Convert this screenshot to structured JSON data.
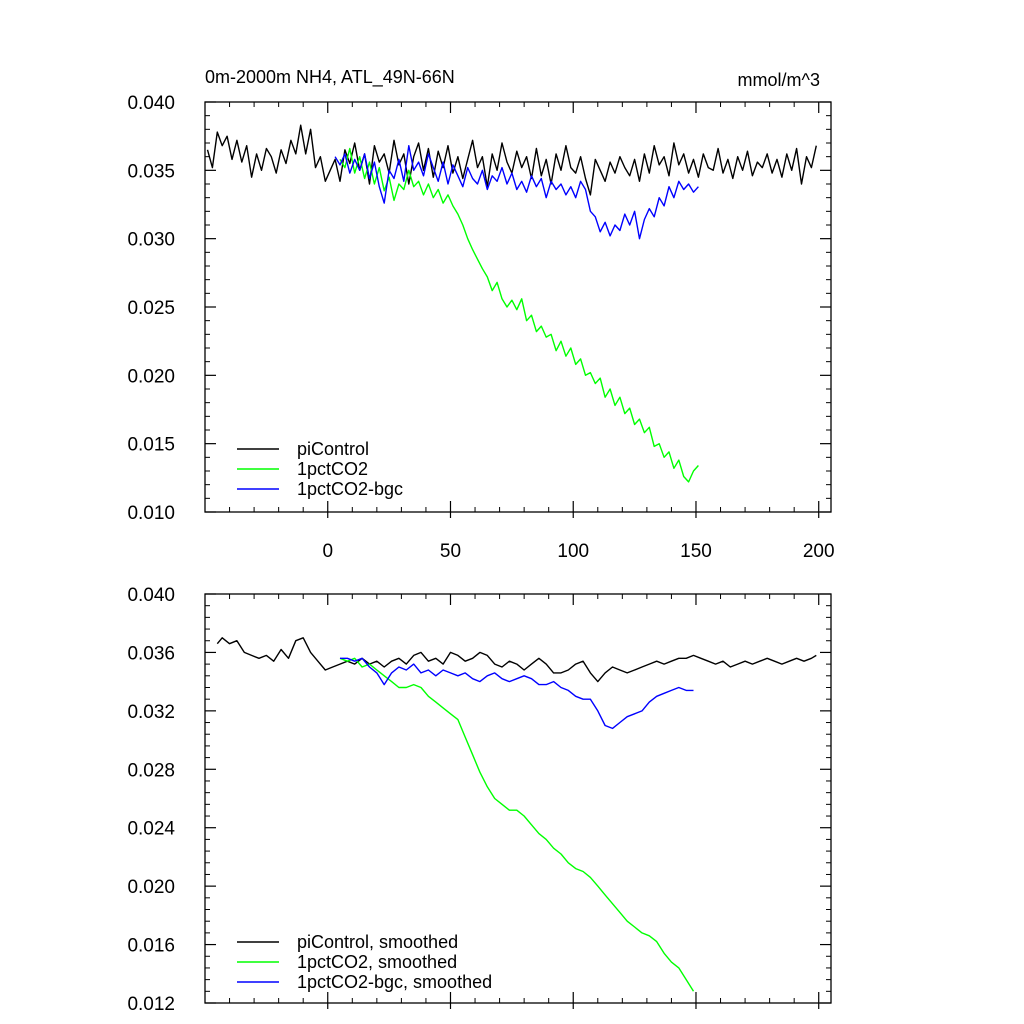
{
  "chart_data": [
    {
      "type": "line",
      "title": "0m-2000m NH4, ATL_49N-66N",
      "units": "mmol/m^3",
      "xlim": [
        -50,
        205
      ],
      "ylim": [
        0.01,
        0.04
      ],
      "y_ticks": [
        0.01,
        0.015,
        0.02,
        0.025,
        0.03,
        0.035,
        0.04
      ],
      "y_tick_labels": [
        "0.010",
        "0.015",
        "0.020",
        "0.025",
        "0.030",
        "0.035",
        "0.040"
      ],
      "x_ticks": [
        0,
        50,
        100,
        150,
        200
      ],
      "x_tick_labels": [
        "0",
        "50",
        "100",
        "150",
        "200"
      ],
      "legend_position": "bottom-left",
      "series": [
        {
          "name": "piControl",
          "color": "#000000",
          "x": [
            -49,
            -47,
            -45,
            -43,
            -41,
            -39,
            -37,
            -35,
            -33,
            -31,
            -29,
            -27,
            -25,
            -23,
            -21,
            -19,
            -17,
            -15,
            -13,
            -11,
            -9,
            -7,
            -5,
            -3,
            -1,
            1,
            3,
            5,
            7,
            9,
            11,
            13,
            15,
            17,
            19,
            21,
            23,
            25,
            27,
            29,
            31,
            33,
            35,
            37,
            39,
            41,
            43,
            45,
            47,
            49,
            51,
            53,
            55,
            57,
            59,
            61,
            63,
            65,
            67,
            69,
            71,
            73,
            75,
            77,
            79,
            81,
            83,
            85,
            87,
            89,
            91,
            93,
            95,
            97,
            99,
            101,
            103,
            105,
            107,
            109,
            111,
            113,
            115,
            117,
            119,
            121,
            123,
            125,
            127,
            129,
            131,
            133,
            135,
            137,
            139,
            141,
            143,
            145,
            147,
            149,
            151,
            153,
            155,
            157,
            159,
            161,
            163,
            165,
            167,
            169,
            171,
            173,
            175,
            177,
            179,
            181,
            183,
            185,
            187,
            189,
            191,
            193,
            195,
            197,
            199
          ],
          "values": [
            0.0365,
            0.0352,
            0.0378,
            0.0368,
            0.0375,
            0.0358,
            0.0372,
            0.0356,
            0.0368,
            0.0345,
            0.0362,
            0.035,
            0.0366,
            0.036,
            0.0348,
            0.0365,
            0.0355,
            0.0372,
            0.0362,
            0.0383,
            0.0362,
            0.038,
            0.0352,
            0.036,
            0.0342,
            0.035,
            0.0358,
            0.0342,
            0.0365,
            0.0355,
            0.037,
            0.035,
            0.0362,
            0.034,
            0.0368,
            0.0356,
            0.0362,
            0.0348,
            0.0372,
            0.0354,
            0.0362,
            0.034,
            0.036,
            0.037,
            0.035,
            0.0366,
            0.0345,
            0.0364,
            0.0352,
            0.0368,
            0.0348,
            0.036,
            0.0344,
            0.0358,
            0.0372,
            0.0352,
            0.036,
            0.0338,
            0.0362,
            0.035,
            0.037,
            0.0356,
            0.0348,
            0.0364,
            0.0352,
            0.036,
            0.0344,
            0.0366,
            0.0346,
            0.0358,
            0.034,
            0.0362,
            0.035,
            0.0368,
            0.0352,
            0.0348,
            0.036,
            0.0344,
            0.0332,
            0.0358,
            0.035,
            0.0342,
            0.0356,
            0.0348,
            0.036,
            0.0352,
            0.0346,
            0.0358,
            0.0342,
            0.0362,
            0.0348,
            0.0368,
            0.0354,
            0.036,
            0.0346,
            0.037,
            0.0354,
            0.0362,
            0.0348,
            0.0358,
            0.0345,
            0.0362,
            0.0352,
            0.035,
            0.0366,
            0.0348,
            0.0358,
            0.0344,
            0.036,
            0.035,
            0.0364,
            0.0346,
            0.0356,
            0.0352,
            0.0362,
            0.0348,
            0.0358,
            0.0345,
            0.0362,
            0.035,
            0.0366,
            0.034,
            0.036,
            0.0352,
            0.0368
          ]
        },
        {
          "name": "1pctCO2",
          "color": "#00ff00",
          "x": [
            5,
            7,
            9,
            11,
            13,
            15,
            17,
            19,
            21,
            23,
            25,
            27,
            29,
            31,
            33,
            35,
            37,
            39,
            41,
            43,
            45,
            47,
            49,
            51,
            53,
            55,
            57,
            59,
            61,
            63,
            65,
            67,
            69,
            71,
            73,
            75,
            77,
            79,
            81,
            83,
            85,
            87,
            89,
            91,
            93,
            95,
            97,
            99,
            101,
            103,
            105,
            107,
            109,
            111,
            113,
            115,
            117,
            119,
            121,
            123,
            125,
            127,
            129,
            131,
            133,
            135,
            137,
            139,
            141,
            143,
            145,
            147,
            149,
            151
          ],
          "values": [
            0.0358,
            0.0352,
            0.0366,
            0.0348,
            0.036,
            0.0344,
            0.0356,
            0.034,
            0.0352,
            0.0335,
            0.0345,
            0.0328,
            0.034,
            0.0336,
            0.035,
            0.0338,
            0.0342,
            0.0332,
            0.034,
            0.033,
            0.0336,
            0.0326,
            0.0332,
            0.0324,
            0.0318,
            0.031,
            0.03,
            0.0292,
            0.0285,
            0.0278,
            0.0272,
            0.0262,
            0.0268,
            0.0256,
            0.025,
            0.0255,
            0.0248,
            0.0256,
            0.024,
            0.0244,
            0.0232,
            0.0236,
            0.0228,
            0.023,
            0.0218,
            0.0225,
            0.0214,
            0.022,
            0.0208,
            0.0212,
            0.02,
            0.0202,
            0.0194,
            0.0198,
            0.0184,
            0.019,
            0.0178,
            0.0184,
            0.0172,
            0.0176,
            0.0164,
            0.0168,
            0.0158,
            0.0162,
            0.0148,
            0.015,
            0.014,
            0.0144,
            0.0132,
            0.0138,
            0.0126,
            0.0122,
            0.013,
            0.0134
          ]
        },
        {
          "name": "1pctCO2-bgc",
          "color": "#0000ff",
          "x": [
            3,
            5,
            7,
            9,
            11,
            13,
            15,
            17,
            19,
            21,
            23,
            25,
            27,
            29,
            31,
            33,
            35,
            37,
            39,
            41,
            43,
            45,
            47,
            49,
            51,
            53,
            55,
            57,
            59,
            61,
            63,
            65,
            67,
            69,
            71,
            73,
            75,
            77,
            79,
            81,
            83,
            85,
            87,
            89,
            91,
            93,
            95,
            97,
            99,
            101,
            103,
            105,
            107,
            109,
            111,
            113,
            115,
            117,
            119,
            121,
            123,
            125,
            127,
            129,
            131,
            133,
            135,
            137,
            139,
            141,
            143,
            145,
            147,
            149,
            151
          ],
          "values": [
            0.036,
            0.0354,
            0.0362,
            0.0348,
            0.0358,
            0.035,
            0.0362,
            0.0344,
            0.0356,
            0.0338,
            0.0326,
            0.035,
            0.0344,
            0.0358,
            0.0342,
            0.0368,
            0.035,
            0.0356,
            0.0346,
            0.0362,
            0.0352,
            0.0342,
            0.0356,
            0.034,
            0.0354,
            0.0346,
            0.0338,
            0.0352,
            0.0344,
            0.034,
            0.035,
            0.0336,
            0.0346,
            0.0342,
            0.0352,
            0.034,
            0.0348,
            0.0336,
            0.0342,
            0.0334,
            0.0346,
            0.0338,
            0.0344,
            0.033,
            0.0342,
            0.0336,
            0.034,
            0.0332,
            0.0338,
            0.033,
            0.0342,
            0.0336,
            0.032,
            0.0316,
            0.0305,
            0.0312,
            0.0302,
            0.031,
            0.0306,
            0.0318,
            0.031,
            0.032,
            0.03,
            0.0314,
            0.0322,
            0.0316,
            0.033,
            0.0324,
            0.0338,
            0.033,
            0.0342,
            0.0336,
            0.034,
            0.0334,
            0.0338
          ]
        }
      ]
    },
    {
      "type": "line",
      "xlim": [
        -50,
        205
      ],
      "ylim": [
        0.012,
        0.04
      ],
      "y_ticks": [
        0.012,
        0.016,
        0.02,
        0.024,
        0.028,
        0.032,
        0.036,
        0.04
      ],
      "y_tick_labels": [
        "0.012",
        "0.016",
        "0.020",
        "0.024",
        "0.028",
        "0.032",
        "0.036",
        "0.040"
      ],
      "x_ticks": [
        0,
        50,
        100,
        150,
        200
      ],
      "legend_position": "bottom-left",
      "series": [
        {
          "name": "piControl, smoothed",
          "color": "#000000",
          "x": [
            -45,
            -43,
            -40,
            -37,
            -34,
            -31,
            -28,
            -25,
            -22,
            -19,
            -16,
            -13,
            -10,
            -7,
            -4,
            -1,
            2,
            5,
            8,
            11,
            14,
            17,
            20,
            23,
            26,
            29,
            32,
            35,
            38,
            41,
            44,
            47,
            50,
            53,
            56,
            59,
            62,
            65,
            68,
            71,
            74,
            77,
            80,
            83,
            86,
            89,
            92,
            95,
            98,
            101,
            104,
            107,
            110,
            113,
            116,
            119,
            122,
            125,
            128,
            131,
            134,
            137,
            140,
            143,
            146,
            149,
            152,
            155,
            158,
            161,
            164,
            167,
            170,
            173,
            176,
            179,
            182,
            185,
            188,
            191,
            194,
            197,
            199
          ],
          "values": [
            0.0366,
            0.037,
            0.0366,
            0.0368,
            0.036,
            0.0358,
            0.0356,
            0.0358,
            0.0354,
            0.0362,
            0.0356,
            0.0368,
            0.037,
            0.036,
            0.0354,
            0.0348,
            0.035,
            0.0352,
            0.0354,
            0.0352,
            0.0356,
            0.0352,
            0.0354,
            0.035,
            0.0354,
            0.0356,
            0.0352,
            0.0358,
            0.036,
            0.0354,
            0.0356,
            0.0352,
            0.036,
            0.0358,
            0.0354,
            0.0356,
            0.036,
            0.0358,
            0.0352,
            0.035,
            0.0354,
            0.0352,
            0.0348,
            0.0352,
            0.0356,
            0.0352,
            0.0346,
            0.0346,
            0.0348,
            0.0352,
            0.0354,
            0.0346,
            0.034,
            0.0346,
            0.035,
            0.0348,
            0.0346,
            0.0348,
            0.035,
            0.0352,
            0.0354,
            0.0352,
            0.0354,
            0.0356,
            0.0356,
            0.0358,
            0.0356,
            0.0354,
            0.0352,
            0.0354,
            0.035,
            0.0352,
            0.0354,
            0.0352,
            0.0354,
            0.0356,
            0.0354,
            0.0352,
            0.0354,
            0.0356,
            0.0354,
            0.0356,
            0.0358
          ]
        },
        {
          "name": "1pctCO2, smoothed",
          "color": "#00ff00",
          "x": [
            5,
            8,
            11,
            14,
            17,
            20,
            23,
            26,
            29,
            32,
            35,
            38,
            41,
            44,
            47,
            50,
            53,
            56,
            59,
            62,
            65,
            68,
            71,
            74,
            77,
            80,
            83,
            86,
            89,
            92,
            95,
            98,
            101,
            104,
            107,
            110,
            113,
            116,
            119,
            122,
            125,
            128,
            131,
            134,
            137,
            140,
            143,
            146,
            149
          ],
          "values": [
            0.0356,
            0.0354,
            0.0356,
            0.035,
            0.0352,
            0.0348,
            0.0344,
            0.034,
            0.0336,
            0.0336,
            0.0338,
            0.0336,
            0.033,
            0.0326,
            0.0322,
            0.0318,
            0.0314,
            0.0302,
            0.029,
            0.0278,
            0.0268,
            0.026,
            0.0256,
            0.0252,
            0.0252,
            0.0248,
            0.0242,
            0.0236,
            0.0232,
            0.0226,
            0.0222,
            0.0216,
            0.0212,
            0.021,
            0.0206,
            0.02,
            0.0194,
            0.0188,
            0.0182,
            0.0176,
            0.0172,
            0.0168,
            0.0166,
            0.0162,
            0.0154,
            0.0148,
            0.0144,
            0.0136,
            0.0128
          ]
        },
        {
          "name": "1pctCO2-bgc, smoothed",
          "color": "#0000ff",
          "x": [
            5,
            8,
            11,
            14,
            17,
            20,
            23,
            26,
            29,
            32,
            35,
            38,
            41,
            44,
            47,
            50,
            53,
            56,
            59,
            62,
            65,
            68,
            71,
            74,
            77,
            80,
            83,
            86,
            89,
            92,
            95,
            98,
            101,
            104,
            107,
            110,
            113,
            116,
            119,
            122,
            125,
            128,
            131,
            134,
            137,
            140,
            143,
            146,
            149
          ],
          "values": [
            0.0356,
            0.0356,
            0.0354,
            0.0356,
            0.035,
            0.0346,
            0.0338,
            0.0346,
            0.035,
            0.0348,
            0.0352,
            0.0346,
            0.0348,
            0.0344,
            0.0348,
            0.0346,
            0.0344,
            0.0346,
            0.0342,
            0.034,
            0.0344,
            0.0346,
            0.0342,
            0.034,
            0.0342,
            0.0344,
            0.0342,
            0.0338,
            0.0338,
            0.034,
            0.0336,
            0.0334,
            0.033,
            0.0328,
            0.0328,
            0.032,
            0.031,
            0.0308,
            0.0312,
            0.0316,
            0.0318,
            0.032,
            0.0326,
            0.033,
            0.0332,
            0.0334,
            0.0336,
            0.0334,
            0.0334
          ]
        }
      ]
    }
  ]
}
